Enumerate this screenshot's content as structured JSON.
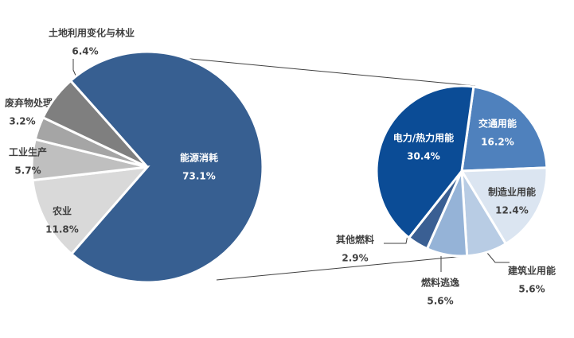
{
  "chart_data": [
    {
      "type": "pie",
      "categories": [
        "能源消耗",
        "农业",
        "工业生产",
        "废弃物处理",
        "土地利用变化与林业"
      ],
      "values": [
        73.1,
        11.8,
        5.7,
        3.2,
        6.4
      ],
      "value_labels": [
        "73.1%",
        "11.8%",
        "5.7%",
        "3.2%",
        "6.4%"
      ],
      "colors": [
        "#375f91",
        "#d9d9d9",
        "#bfbfbf",
        "#a5a5a5",
        "#7f7f7f"
      ]
    },
    {
      "type": "pie",
      "categories": [
        "交通用能",
        "制造业用能",
        "建筑业用能",
        "燃料逃逸",
        "其他燃料",
        "电力/热力用能"
      ],
      "values": [
        16.2,
        12.4,
        5.6,
        5.6,
        2.9,
        30.4
      ],
      "value_labels": [
        "16.2%",
        "12.4%",
        "5.6%",
        "5.6%",
        "2.9%",
        "30.4%"
      ],
      "colors": [
        "#4f81bd",
        "#dbe5f1",
        "#b8cce4",
        "#95b3d7",
        "#3a5f93",
        "#0b4c96"
      ]
    }
  ]
}
